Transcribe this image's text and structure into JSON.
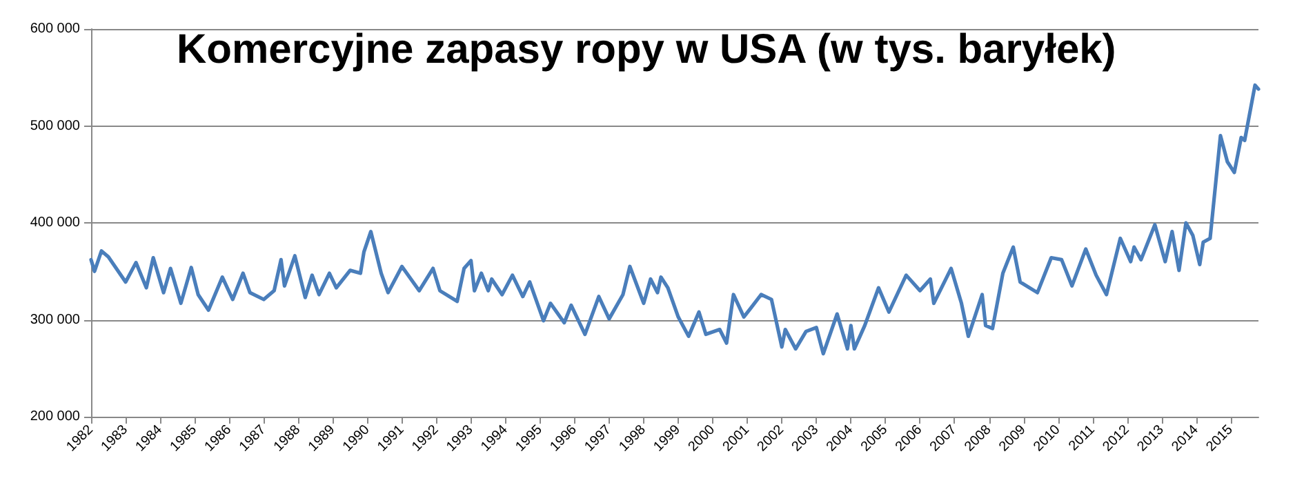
{
  "chart_data": {
    "type": "line",
    "title": "Komercyjne zapasy ropy w USA (w tys. baryłek)",
    "x": [
      1982.0,
      1982.1,
      1982.3,
      1982.5,
      1983.0,
      1983.3,
      1983.6,
      1983.8,
      1984.1,
      1984.3,
      1984.6,
      1984.9,
      1985.1,
      1985.4,
      1985.8,
      1986.1,
      1986.4,
      1986.6,
      1987.0,
      1987.3,
      1987.5,
      1987.6,
      1987.9,
      1988.2,
      1988.4,
      1988.6,
      1988.9,
      1989.1,
      1989.5,
      1989.8,
      1989.9,
      1990.1,
      1990.4,
      1990.6,
      1991.0,
      1991.5,
      1991.9,
      1992.1,
      1992.6,
      1992.8,
      1993.0,
      1993.1,
      1993.3,
      1993.5,
      1993.6,
      1993.9,
      1994.2,
      1994.5,
      1994.7,
      1995.1,
      1995.3,
      1995.7,
      1995.9,
      1996.3,
      1996.7,
      1997.0,
      1997.4,
      1997.6,
      1998.0,
      1998.2,
      1998.4,
      1998.5,
      1998.7,
      1999.0,
      1999.3,
      1999.6,
      1999.8,
      2000.2,
      2000.4,
      2000.6,
      2000.9,
      2001.1,
      2001.4,
      2001.7,
      2002.0,
      2002.1,
      2002.4,
      2002.7,
      2003.0,
      2003.2,
      2003.6,
      2003.9,
      2004.0,
      2004.1,
      2004.4,
      2004.8,
      2005.1,
      2005.6,
      2006.0,
      2006.3,
      2006.4,
      2006.9,
      2007.2,
      2007.4,
      2007.8,
      2007.9,
      2008.1,
      2008.4,
      2008.7,
      2008.9,
      2009.4,
      2009.8,
      2010.1,
      2010.4,
      2010.8,
      2011.1,
      2011.4,
      2011.8,
      2012.1,
      2012.2,
      2012.4,
      2012.8,
      2013.1,
      2013.3,
      2013.5,
      2013.7,
      2013.9,
      2014.1,
      2014.2,
      2014.4,
      2014.7,
      2014.9,
      2015.1,
      2015.3,
      2015.4,
      2015.7,
      2015.8
    ],
    "values": [
      362000,
      350000,
      371000,
      365000,
      339000,
      359000,
      333000,
      364000,
      328000,
      353000,
      317000,
      354000,
      326000,
      310000,
      344000,
      321000,
      348000,
      328000,
      321000,
      330000,
      362000,
      335000,
      366000,
      323000,
      346000,
      326000,
      348000,
      333000,
      351000,
      348000,
      370000,
      391000,
      348000,
      328000,
      355000,
      330000,
      353000,
      330000,
      319000,
      353000,
      361000,
      330000,
      348000,
      330000,
      342000,
      326000,
      346000,
      324000,
      339000,
      299000,
      317000,
      297000,
      315000,
      285000,
      324000,
      301000,
      326000,
      355000,
      317000,
      342000,
      328000,
      344000,
      333000,
      303000,
      283000,
      308000,
      285000,
      290000,
      276000,
      326000,
      303000,
      312000,
      326000,
      321000,
      272000,
      290000,
      270000,
      288000,
      292000,
      265000,
      306000,
      270000,
      294000,
      270000,
      294000,
      333000,
      308000,
      346000,
      330000,
      342000,
      317000,
      353000,
      317000,
      283000,
      326000,
      294000,
      291000,
      348000,
      375000,
      339000,
      328000,
      364000,
      362000,
      335000,
      373000,
      346000,
      326000,
      384000,
      360000,
      375000,
      362000,
      398000,
      360000,
      391000,
      351000,
      400000,
      387000,
      357000,
      380000,
      384000,
      490000,
      463000,
      452000,
      488000,
      485000,
      542000,
      538000
    ],
    "color": "#4a7ebb",
    "xlim": [
      1982,
      2015.8
    ],
    "xticks": [
      1982,
      1983,
      1984,
      1985,
      1986,
      1987,
      1988,
      1989,
      1990,
      1991,
      1992,
      1993,
      1994,
      1995,
      1996,
      1997,
      1998,
      1999,
      2000,
      2001,
      2002,
      2003,
      2004,
      2005,
      2006,
      2007,
      2008,
      2009,
      2010,
      2011,
      2012,
      2013,
      2014,
      2015
    ],
    "ylim": [
      200000,
      600000
    ],
    "yticks": [
      {
        "value": 200000,
        "label": "200 000"
      },
      {
        "value": 300000,
        "label": "300 000"
      },
      {
        "value": 400000,
        "label": "400 000"
      },
      {
        "value": 500000,
        "label": "500 000"
      },
      {
        "value": 600000,
        "label": "600 000"
      }
    ],
    "grid": "y",
    "marker": "none",
    "line_style": "solid"
  }
}
